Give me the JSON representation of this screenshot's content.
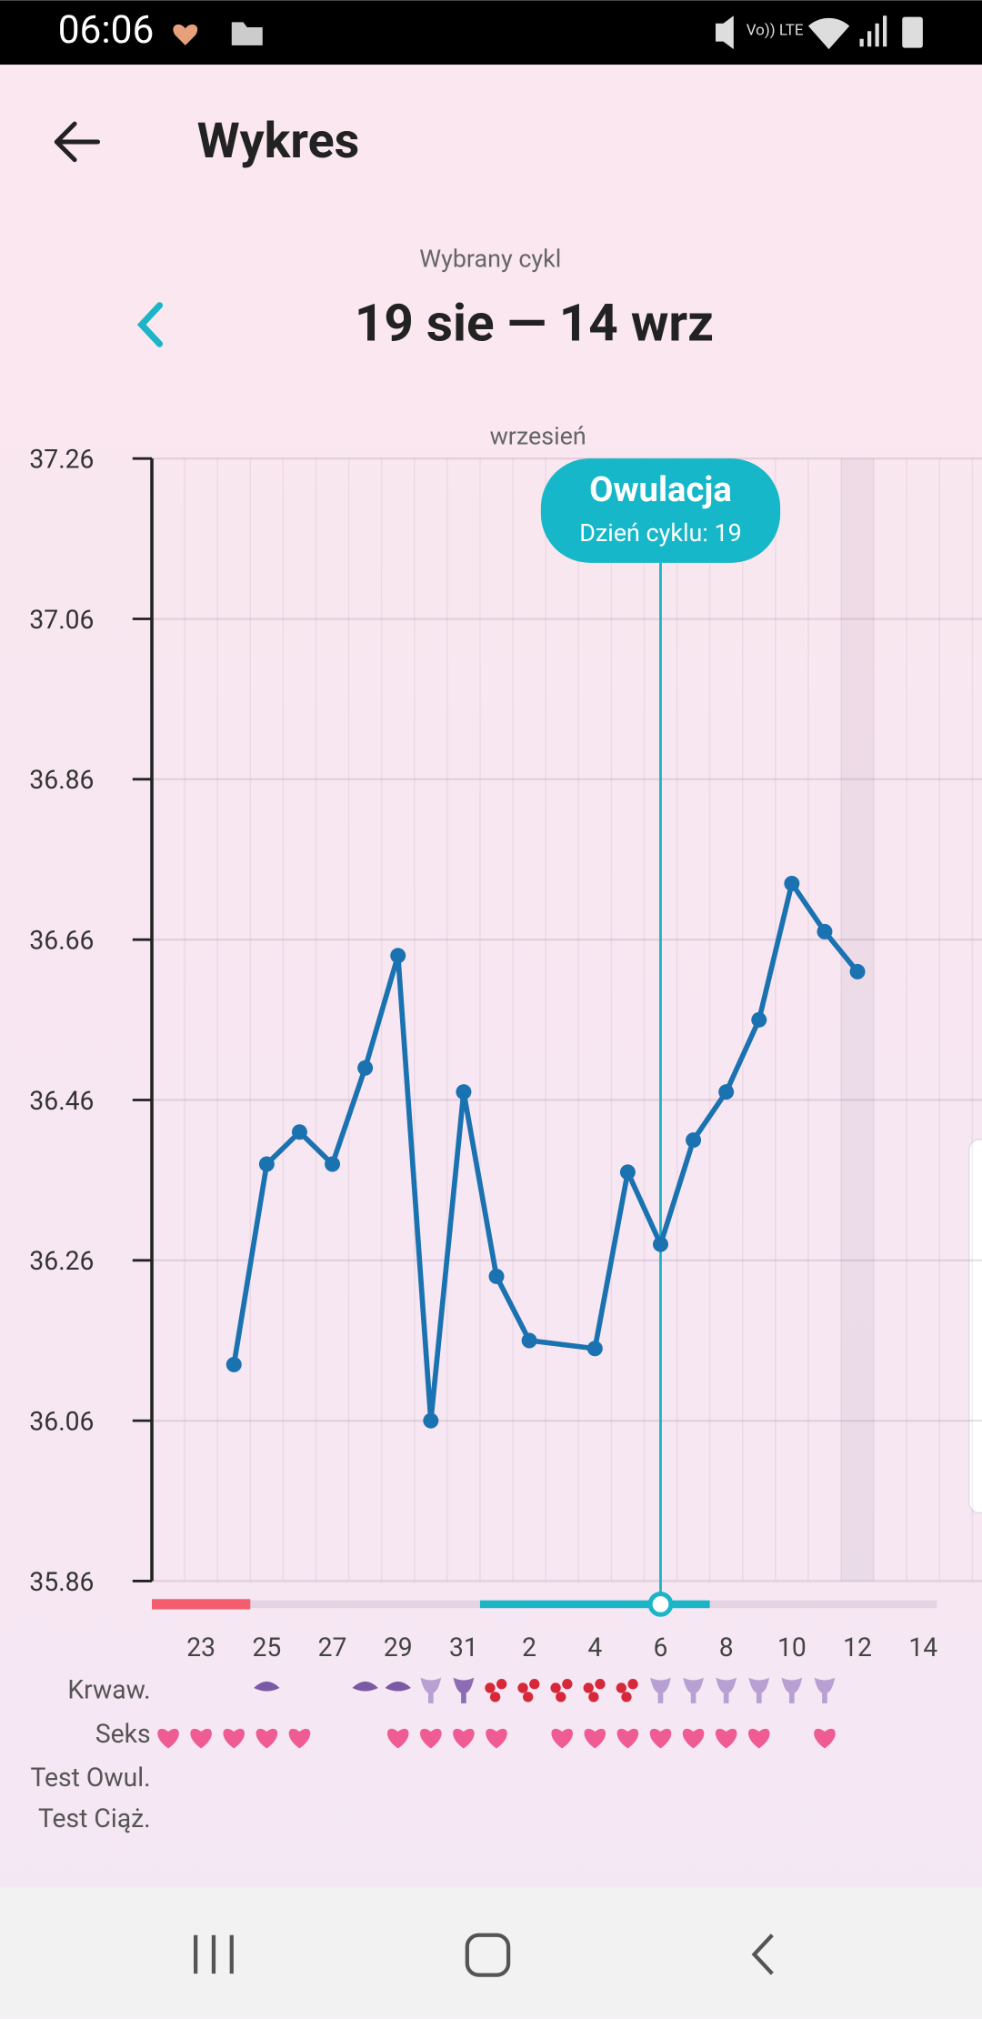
{
  "status_bar": {
    "time": "06:06"
  },
  "header": {
    "title": "Wykres"
  },
  "cycle": {
    "label": "Wybrany cykl",
    "range": "19 sie — 14 wrz"
  },
  "chart_data": {
    "type": "line",
    "month_label": "wrzesień",
    "categories": [
      null,
      "23",
      null,
      "25",
      null,
      "27",
      null,
      "29",
      null,
      "31",
      null,
      "2",
      null,
      "4",
      null,
      "6",
      null,
      "8",
      null,
      "10",
      null,
      "12",
      null,
      "14",
      null
    ],
    "values": [
      null,
      null,
      36.13,
      36.38,
      36.42,
      36.38,
      36.5,
      36.64,
      36.06,
      36.47,
      36.24,
      36.16,
      null,
      36.15,
      36.37,
      36.28,
      36.41,
      36.47,
      36.56,
      36.73,
      36.67,
      36.62,
      null,
      null,
      null
    ],
    "color": "#1b72b1",
    "ylim": [
      35.86,
      37.26
    ],
    "yticks": [
      35.86,
      36.06,
      36.26,
      36.46,
      36.66,
      36.86,
      37.06,
      37.26
    ],
    "grid": true,
    "annotation": {
      "title": "Owulacja",
      "text": "Dzień cyklu: 19"
    }
  },
  "symbol_rows": {
    "labels": [
      "Krwaw.",
      "Seks",
      "Test Owul.",
      "Test Ciąż."
    ]
  }
}
